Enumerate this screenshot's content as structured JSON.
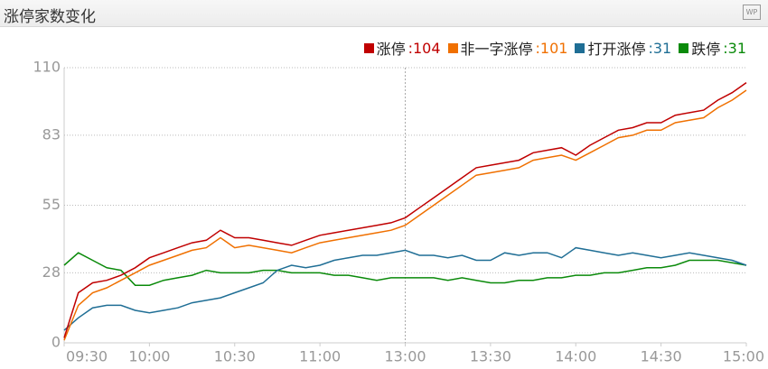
{
  "icon": "WP",
  "chart_data": {
    "type": "line",
    "title": "涨停家数变化",
    "x": [
      0,
      5,
      10,
      15,
      20,
      25,
      30,
      35,
      40,
      45,
      50,
      55,
      60,
      65,
      70,
      75,
      80,
      85,
      90,
      95,
      100,
      105,
      110,
      115,
      120,
      125,
      130,
      135,
      140,
      145,
      150,
      155,
      160,
      165,
      170,
      175,
      180,
      185,
      190,
      195,
      200,
      205,
      210,
      215,
      220,
      225,
      230,
      235,
      240
    ],
    "xlim": [
      0,
      240
    ],
    "xticks": [
      {
        "value": 0,
        "label": "09:30"
      },
      {
        "value": 30,
        "label": "10:00"
      },
      {
        "value": 60,
        "label": "10:30"
      },
      {
        "value": 90,
        "label": "11:00"
      },
      {
        "value": 120,
        "label": "13:00"
      },
      {
        "value": 150,
        "label": "13:30"
      },
      {
        "value": 180,
        "label": "14:00"
      },
      {
        "value": 210,
        "label": "14:30"
      },
      {
        "value": 240,
        "label": "15:00"
      }
    ],
    "ylim": [
      0,
      110
    ],
    "yticks": [
      0,
      28,
      55,
      83,
      110
    ],
    "grid": true,
    "legend": "top-right",
    "series": [
      {
        "name": "涨停",
        "legend_label": ":104",
        "color": "#c00000",
        "values": [
          2,
          20,
          24,
          25,
          27,
          30,
          34,
          36,
          38,
          40,
          41,
          45,
          42,
          42,
          41,
          40,
          39,
          41,
          43,
          44,
          45,
          46,
          47,
          48,
          50,
          54,
          58,
          62,
          66,
          70,
          71,
          72,
          73,
          76,
          77,
          78,
          75,
          79,
          82,
          85,
          86,
          88,
          88,
          91,
          92,
          93,
          97,
          100,
          104
        ]
      },
      {
        "name": "非一字涨停",
        "legend_label": ":101",
        "color": "#f07000",
        "values": [
          1,
          15,
          20,
          22,
          25,
          28,
          31,
          33,
          35,
          37,
          38,
          42,
          38,
          39,
          38,
          37,
          36,
          38,
          40,
          41,
          42,
          43,
          44,
          45,
          47,
          51,
          55,
          59,
          63,
          67,
          68,
          69,
          70,
          73,
          74,
          75,
          73,
          76,
          79,
          82,
          83,
          85,
          85,
          88,
          89,
          90,
          94,
          97,
          101
        ]
      },
      {
        "name": "打开涨停",
        "legend_label": ":31",
        "color": "#1f6e95",
        "values": [
          5,
          10,
          14,
          15,
          15,
          13,
          12,
          13,
          14,
          16,
          17,
          18,
          20,
          22,
          24,
          29,
          31,
          30,
          31,
          33,
          34,
          35,
          35,
          36,
          37,
          35,
          35,
          34,
          35,
          33,
          33,
          36,
          35,
          36,
          36,
          34,
          38,
          37,
          36,
          35,
          36,
          35,
          34,
          35,
          36,
          35,
          34,
          33,
          31
        ]
      },
      {
        "name": "跌停",
        "legend_label": ":31",
        "color": "#0a8a0a",
        "values": [
          31,
          36,
          33,
          30,
          29,
          23,
          23,
          25,
          26,
          27,
          29,
          28,
          28,
          28,
          29,
          29,
          28,
          28,
          28,
          27,
          27,
          26,
          25,
          26,
          26,
          26,
          26,
          25,
          26,
          25,
          24,
          24,
          25,
          25,
          26,
          26,
          27,
          27,
          28,
          28,
          29,
          30,
          30,
          31,
          33,
          33,
          33,
          32,
          31
        ]
      }
    ]
  }
}
